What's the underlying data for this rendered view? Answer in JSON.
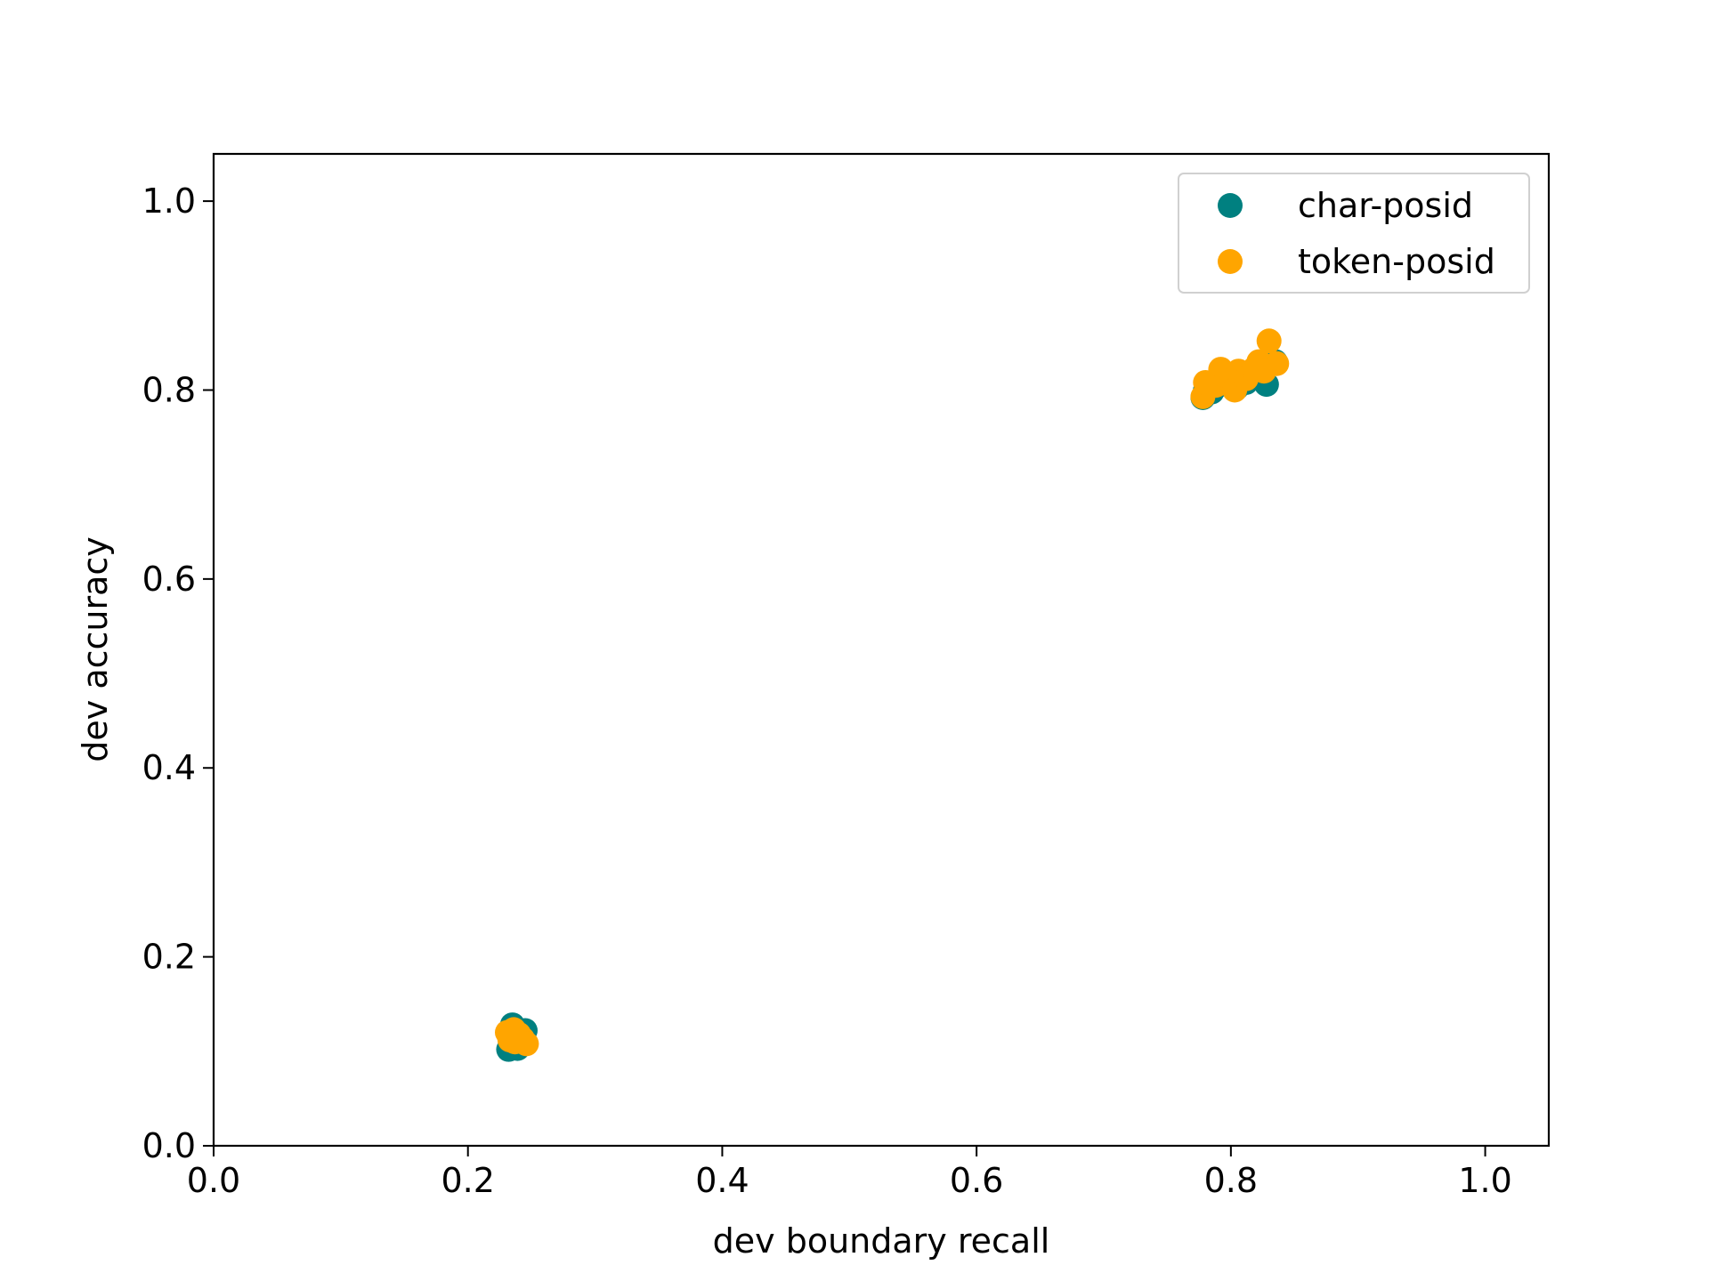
{
  "chart_data": {
    "type": "scatter",
    "xlabel": "dev boundary recall",
    "ylabel": "dev accuracy",
    "xlim": [
      0.0,
      1.05
    ],
    "ylim": [
      0.0,
      1.05
    ],
    "xticks": [
      0.0,
      0.2,
      0.4,
      0.6,
      0.8,
      1.0
    ],
    "yticks": [
      0.0,
      0.2,
      0.4,
      0.6,
      0.8,
      1.0
    ],
    "xtick_labels": [
      "0.0",
      "0.2",
      "0.4",
      "0.6",
      "0.8",
      "1.0"
    ],
    "ytick_labels": [
      "0.0",
      "0.2",
      "0.4",
      "0.6",
      "0.8",
      "1.0"
    ],
    "grid": false,
    "legend_position": "top-right",
    "series": [
      {
        "name": "char-posid",
        "color": "#008080",
        "points": [
          {
            "x": 0.235,
            "y": 0.128
          },
          {
            "x": 0.238,
            "y": 0.118
          },
          {
            "x": 0.242,
            "y": 0.112
          },
          {
            "x": 0.232,
            "y": 0.102
          },
          {
            "x": 0.239,
            "y": 0.103
          },
          {
            "x": 0.245,
            "y": 0.122
          },
          {
            "x": 0.244,
            "y": 0.11
          },
          {
            "x": 0.236,
            "y": 0.108
          },
          {
            "x": 0.778,
            "y": 0.792
          },
          {
            "x": 0.785,
            "y": 0.798
          },
          {
            "x": 0.79,
            "y": 0.805
          },
          {
            "x": 0.798,
            "y": 0.81
          },
          {
            "x": 0.805,
            "y": 0.803
          },
          {
            "x": 0.812,
            "y": 0.808
          },
          {
            "x": 0.828,
            "y": 0.806
          },
          {
            "x": 0.835,
            "y": 0.83
          },
          {
            "x": 0.825,
            "y": 0.822
          },
          {
            "x": 0.78,
            "y": 0.8
          }
        ]
      },
      {
        "name": "token-posid",
        "color": "#FFA500",
        "points": [
          {
            "x": 0.231,
            "y": 0.12
          },
          {
            "x": 0.234,
            "y": 0.115
          },
          {
            "x": 0.237,
            "y": 0.11
          },
          {
            "x": 0.24,
            "y": 0.118
          },
          {
            "x": 0.243,
            "y": 0.113
          },
          {
            "x": 0.246,
            "y": 0.108
          },
          {
            "x": 0.236,
            "y": 0.123
          },
          {
            "x": 0.233,
            "y": 0.112
          },
          {
            "x": 0.778,
            "y": 0.793
          },
          {
            "x": 0.78,
            "y": 0.808
          },
          {
            "x": 0.788,
            "y": 0.805
          },
          {
            "x": 0.792,
            "y": 0.822
          },
          {
            "x": 0.797,
            "y": 0.815
          },
          {
            "x": 0.803,
            "y": 0.8
          },
          {
            "x": 0.806,
            "y": 0.82
          },
          {
            "x": 0.812,
            "y": 0.812
          },
          {
            "x": 0.818,
            "y": 0.822
          },
          {
            "x": 0.822,
            "y": 0.83
          },
          {
            "x": 0.83,
            "y": 0.852
          },
          {
            "x": 0.836,
            "y": 0.828
          },
          {
            "x": 0.826,
            "y": 0.82
          }
        ]
      }
    ]
  }
}
